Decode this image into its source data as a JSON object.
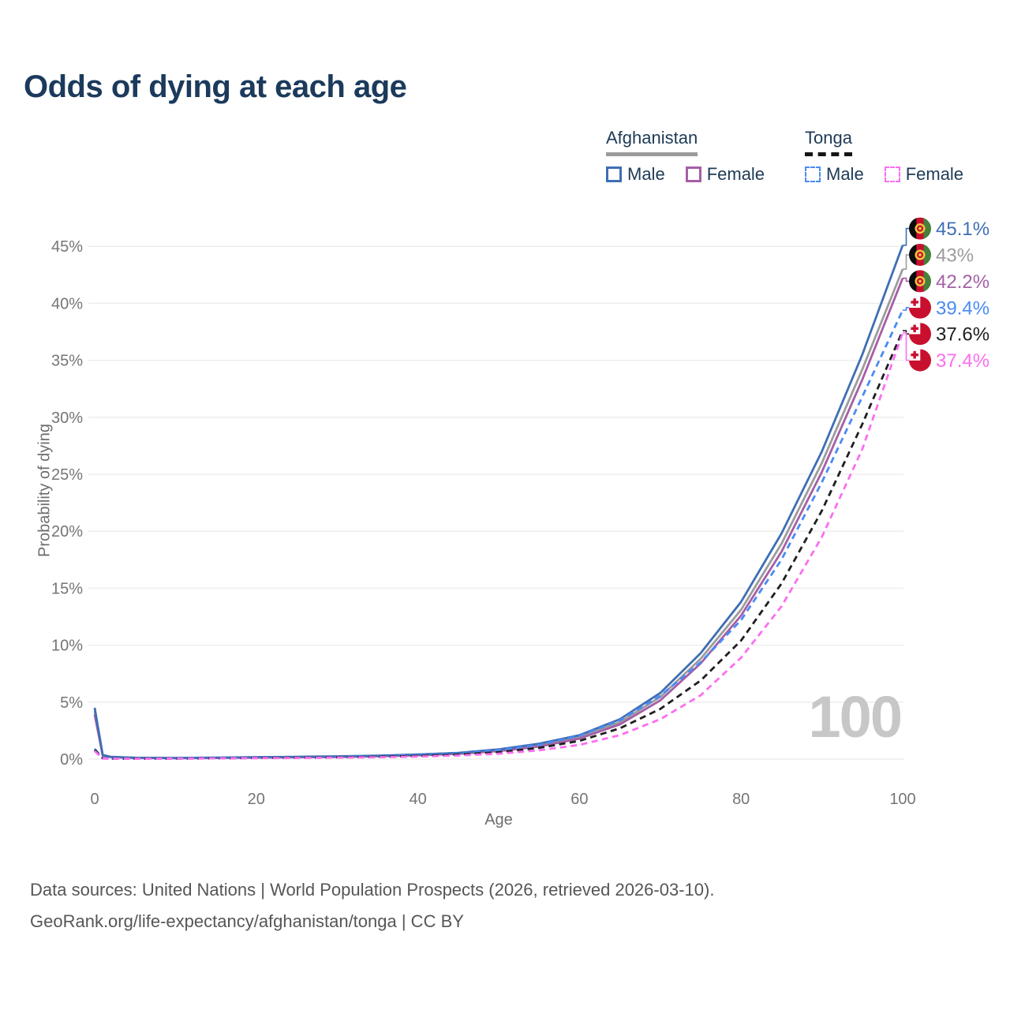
{
  "title": "Odds of dying at each age",
  "legend": {
    "groups": [
      {
        "label": "Afghanistan",
        "line_style": "solid",
        "underline_color": "#9b9b9b",
        "items": [
          {
            "label": "Male",
            "color": "#3f6eb4",
            "dash": "solid"
          },
          {
            "label": "Female",
            "color": "#a55fa5",
            "dash": "solid"
          }
        ]
      },
      {
        "label": "Tonga",
        "line_style": "dashed",
        "underline_color": "#151515",
        "items": [
          {
            "label": "Male",
            "color": "#4a8af5",
            "dash": "dashed"
          },
          {
            "label": "Female",
            "color": "#fb6ef0",
            "dash": "dashed"
          }
        ]
      }
    ]
  },
  "chart_data": {
    "type": "line",
    "title": "Odds of dying at each age",
    "xlabel": "Age",
    "ylabel": "Probability of dying",
    "watermark": "100",
    "x_ticks": [
      0,
      20,
      40,
      60,
      80,
      100
    ],
    "y_ticks_pct": [
      0,
      5,
      10,
      15,
      20,
      25,
      30,
      35,
      40,
      45
    ],
    "xlim": [
      0,
      100
    ],
    "ylim_pct": [
      0,
      46.5
    ],
    "grid": "horizontal-only",
    "legend_position": "top-right",
    "ages": [
      0,
      1,
      2,
      5,
      10,
      15,
      20,
      25,
      30,
      35,
      40,
      45,
      50,
      55,
      60,
      65,
      70,
      75,
      80,
      85,
      90,
      95,
      100
    ],
    "series": [
      {
        "name": "Afghanistan Male",
        "country": "Afghanistan",
        "sex": "Male",
        "style": "solid",
        "color": "#3f6eb4",
        "flag_icon": "flag-afghanistan",
        "end_label": "45.1%",
        "end_value_pct": 45.1,
        "values_pct": [
          4.5,
          0.35,
          0.2,
          0.12,
          0.1,
          0.13,
          0.17,
          0.2,
          0.24,
          0.3,
          0.4,
          0.55,
          0.85,
          1.35,
          2.1,
          3.5,
          5.8,
          9.3,
          13.8,
          19.8,
          27.0,
          35.5,
          45.1
        ]
      },
      {
        "name": "Afghanistan Both sexes",
        "country": "Afghanistan",
        "sex": "Both",
        "style": "solid",
        "color": "#9c9c9c",
        "flag_icon": "flag-afghanistan",
        "end_label": "43%",
        "end_value_pct": 43.0,
        "values_pct": [
          4.2,
          0.32,
          0.18,
          0.11,
          0.09,
          0.11,
          0.15,
          0.18,
          0.21,
          0.27,
          0.36,
          0.5,
          0.77,
          1.22,
          1.95,
          3.25,
          5.45,
          8.8,
          13.1,
          18.9,
          26.0,
          34.2,
          43.0
        ]
      },
      {
        "name": "Afghanistan Female",
        "country": "Afghanistan",
        "sex": "Female",
        "style": "solid",
        "color": "#a55fa5",
        "flag_icon": "flag-afghanistan",
        "end_label": "42.2%",
        "end_value_pct": 42.2,
        "values_pct": [
          3.9,
          0.3,
          0.17,
          0.1,
          0.08,
          0.1,
          0.13,
          0.16,
          0.19,
          0.24,
          0.33,
          0.46,
          0.7,
          1.1,
          1.8,
          3.05,
          5.15,
          8.4,
          12.6,
          18.2,
          25.2,
          33.3,
          42.2
        ]
      },
      {
        "name": "Tonga Male",
        "country": "Tonga",
        "sex": "Male",
        "style": "dashed",
        "color": "#4a8af5",
        "flag_icon": "flag-tonga",
        "end_label": "39.4%",
        "end_value_pct": 39.4,
        "values_pct": [
          0.9,
          0.07,
          0.05,
          0.04,
          0.05,
          0.08,
          0.12,
          0.16,
          0.2,
          0.26,
          0.35,
          0.5,
          0.78,
          1.25,
          2.05,
          3.4,
          5.55,
          8.5,
          12.2,
          17.5,
          24.3,
          31.8,
          39.4
        ]
      },
      {
        "name": "Tonga Both sexes",
        "country": "Tonga",
        "sex": "Both",
        "style": "dashed",
        "color": "#1f1f1f",
        "flag_icon": "flag-tonga",
        "end_label": "37.6%",
        "end_value_pct": 37.6,
        "values_pct": [
          0.8,
          0.06,
          0.05,
          0.04,
          0.04,
          0.07,
          0.1,
          0.13,
          0.16,
          0.21,
          0.28,
          0.4,
          0.6,
          0.98,
          1.6,
          2.7,
          4.4,
          6.9,
          10.4,
          15.4,
          21.8,
          29.4,
          37.6
        ]
      },
      {
        "name": "Tonga Female",
        "country": "Tonga",
        "sex": "Female",
        "style": "dashed",
        "color": "#fb6ef0",
        "flag_icon": "flag-tonga",
        "end_label": "37.4%",
        "end_value_pct": 37.4,
        "values_pct": [
          0.7,
          0.05,
          0.04,
          0.03,
          0.04,
          0.06,
          0.08,
          0.1,
          0.13,
          0.16,
          0.22,
          0.31,
          0.47,
          0.77,
          1.25,
          2.1,
          3.5,
          5.6,
          8.9,
          13.4,
          19.5,
          27.2,
          37.4
        ]
      }
    ]
  },
  "footer": {
    "line1": "Data sources: United Nations | World Population Prospects (2026, retrieved 2026-03-10).",
    "line2": "GeoRank.org/life-expectancy/afghanistan/tonga | CC BY"
  }
}
